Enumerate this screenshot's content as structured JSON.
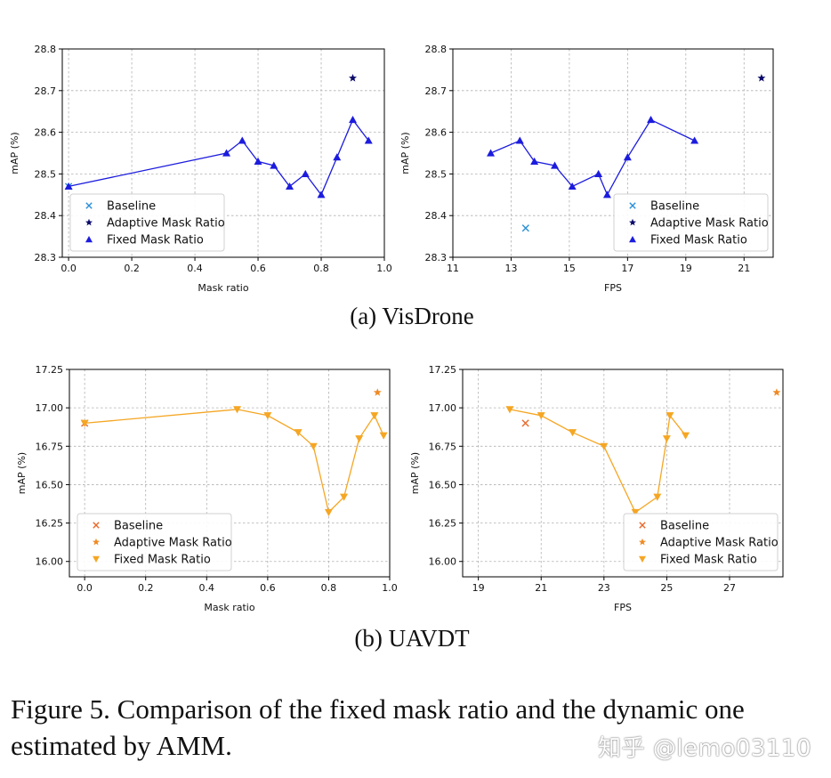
{
  "figure": {
    "caption": "Figure 5. Comparison of the fixed mask ratio and the dynamic one estimated by AMM.",
    "watermark": "知乎 @lemo03110",
    "subtitles": [
      "(a) VisDrone",
      "(b) UAVDT"
    ]
  },
  "chart_data": [
    {
      "type": "line",
      "title": "",
      "xlabel": "Mask ratio",
      "ylabel": "mAP (%)",
      "xlim": [
        -0.02,
        1.0
      ],
      "ylim": [
        28.3,
        28.8
      ],
      "xticks": [
        0.0,
        0.2,
        0.4,
        0.6,
        0.8,
        1.0
      ],
      "xtick_labels": [
        "0.0",
        "0.2",
        "0.4",
        "0.6",
        "0.8",
        "1.0"
      ],
      "yticks": [
        28.3,
        28.4,
        28.5,
        28.6,
        28.7,
        28.8
      ],
      "ytick_labels": [
        "28.3",
        "28.4",
        "28.5",
        "28.6",
        "28.7",
        "28.8"
      ],
      "color": "#1c1cde",
      "legend_position": "lower-left",
      "series": [
        {
          "name": "Baseline",
          "marker": "x",
          "color": "#2a8fd8",
          "x": [
            0.0
          ],
          "y": [
            28.47
          ]
        },
        {
          "name": "Adaptive Mask Ratio",
          "marker": "star",
          "color": "#0b0b6b",
          "x": [
            0.9
          ],
          "y": [
            28.73
          ]
        },
        {
          "name": "Fixed Mask Ratio",
          "marker": "triangle-up",
          "color": "#1c1cde",
          "connect": true,
          "x": [
            0.0,
            0.5,
            0.55,
            0.6,
            0.65,
            0.7,
            0.75,
            0.8,
            0.85,
            0.9,
            0.95
          ],
          "y": [
            28.47,
            28.55,
            28.58,
            28.53,
            28.52,
            28.47,
            28.5,
            28.45,
            28.54,
            28.63,
            28.58
          ]
        }
      ]
    },
    {
      "type": "line",
      "title": "",
      "xlabel": "FPS",
      "ylabel": "mAP (%)",
      "xlim": [
        11,
        22
      ],
      "ylim": [
        28.3,
        28.8
      ],
      "xticks": [
        11,
        13,
        15,
        17,
        19,
        21
      ],
      "xtick_labels": [
        "11",
        "13",
        "15",
        "17",
        "19",
        "21"
      ],
      "yticks": [
        28.3,
        28.4,
        28.5,
        28.6,
        28.7,
        28.8
      ],
      "ytick_labels": [
        "28.3",
        "28.4",
        "28.5",
        "28.6",
        "28.7",
        "28.8"
      ],
      "color": "#1c1cde",
      "legend_position": "lower-right",
      "series": [
        {
          "name": "Baseline",
          "marker": "x",
          "color": "#2a8fd8",
          "x": [
            13.5
          ],
          "y": [
            28.37
          ]
        },
        {
          "name": "Adaptive Mask Ratio",
          "marker": "star",
          "color": "#0b0b6b",
          "x": [
            21.6
          ],
          "y": [
            28.73
          ]
        },
        {
          "name": "Fixed Mask Ratio",
          "marker": "triangle-up",
          "color": "#1c1cde",
          "connect": true,
          "x": [
            12.3,
            13.3,
            13.8,
            14.5,
            15.1,
            16.0,
            16.3,
            17.0,
            17.8,
            19.3
          ],
          "y": [
            28.55,
            28.58,
            28.53,
            28.52,
            28.47,
            28.5,
            28.45,
            28.54,
            28.63,
            28.58
          ]
        }
      ]
    },
    {
      "type": "line",
      "title": "",
      "xlabel": "Mask ratio",
      "ylabel": "mAP (%)",
      "xlim": [
        -0.05,
        1.0
      ],
      "ylim": [
        15.9,
        17.25
      ],
      "xticks": [
        0.0,
        0.2,
        0.4,
        0.6,
        0.8,
        1.0
      ],
      "xtick_labels": [
        "0.0",
        "0.2",
        "0.4",
        "0.6",
        "0.8",
        "1.0"
      ],
      "yticks": [
        16.0,
        16.25,
        16.5,
        16.75,
        17.0,
        17.25
      ],
      "ytick_labels": [
        "16.00",
        "16.25",
        "16.50",
        "16.75",
        "17.00",
        "17.25"
      ],
      "color": "#f5a623",
      "legend_position": "lower-left",
      "series": [
        {
          "name": "Baseline",
          "marker": "x",
          "color": "#e8692b",
          "x": [
            0.0
          ],
          "y": [
            16.9
          ]
        },
        {
          "name": "Adaptive Mask Ratio",
          "marker": "star",
          "color": "#f08a24",
          "x": [
            0.96
          ],
          "y": [
            17.1
          ]
        },
        {
          "name": "Fixed Mask Ratio",
          "marker": "triangle-down",
          "color": "#f5a623",
          "connect": true,
          "x": [
            0.0,
            0.5,
            0.6,
            0.7,
            0.75,
            0.8,
            0.85,
            0.9,
            0.95,
            0.98
          ],
          "y": [
            16.9,
            16.99,
            16.95,
            16.84,
            16.75,
            16.32,
            16.42,
            16.8,
            16.95,
            16.82
          ]
        }
      ]
    },
    {
      "type": "line",
      "title": "",
      "xlabel": "FPS",
      "ylabel": "mAP (%)",
      "xlim": [
        18.5,
        28.7
      ],
      "ylim": [
        15.9,
        17.25
      ],
      "xticks": [
        19,
        21,
        23,
        25,
        27
      ],
      "xtick_labels": [
        "19",
        "21",
        "23",
        "25",
        "27"
      ],
      "yticks": [
        16.0,
        16.25,
        16.5,
        16.75,
        17.0,
        17.25
      ],
      "ytick_labels": [
        "16.00",
        "16.25",
        "16.50",
        "16.75",
        "17.00",
        "17.25"
      ],
      "color": "#f5a623",
      "legend_position": "lower-right",
      "series": [
        {
          "name": "Baseline",
          "marker": "x",
          "color": "#e8692b",
          "x": [
            20.5
          ],
          "y": [
            16.9
          ]
        },
        {
          "name": "Adaptive Mask Ratio",
          "marker": "star",
          "color": "#f08a24",
          "x": [
            28.5
          ],
          "y": [
            17.1
          ]
        },
        {
          "name": "Fixed Mask Ratio",
          "marker": "triangle-down",
          "color": "#f5a623",
          "connect": true,
          "x": [
            20.0,
            21.0,
            22.0,
            23.0,
            24.0,
            24.7,
            25.0,
            25.1,
            25.6
          ],
          "y": [
            16.99,
            16.95,
            16.84,
            16.75,
            16.32,
            16.42,
            16.8,
            16.95,
            16.82
          ]
        }
      ]
    }
  ]
}
